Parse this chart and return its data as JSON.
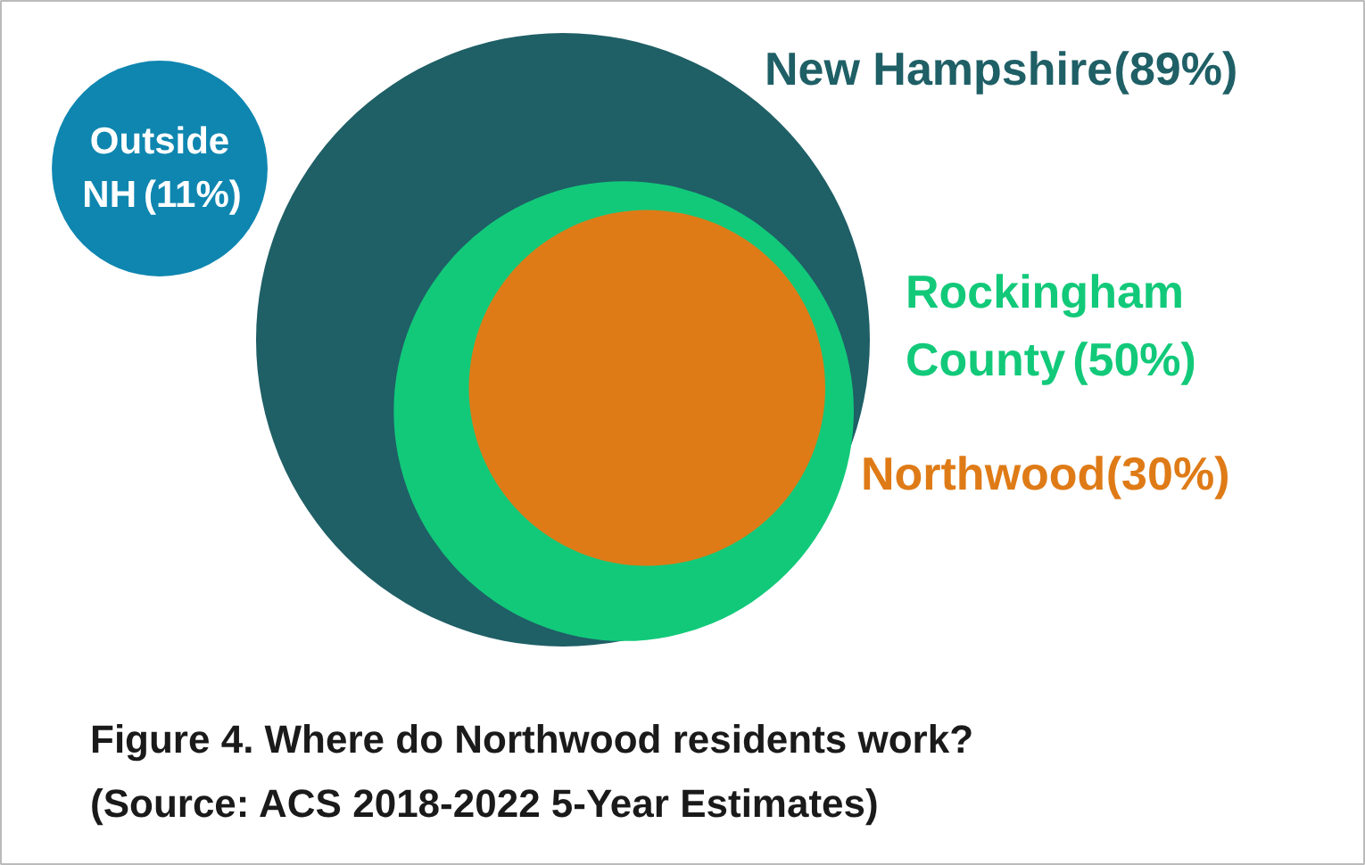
{
  "chart_data": {
    "type": "other",
    "title": "Figure 4. Where do Northwood residents work?",
    "annotations": [
      "(Source: ACS 2018-2022 5-Year Estimates)"
    ],
    "categories": [
      "Outside NH",
      "New Hampshire",
      "Rockingham County",
      "Northwood"
    ],
    "values": [
      11,
      89,
      50,
      30
    ],
    "value_labels": [
      "(11%)",
      "(89%)",
      "(50%)",
      "(30%)"
    ],
    "colors": [
      "#0e86b0",
      "#1f5f66",
      "#12c97a",
      "#df7b17"
    ]
  }
}
